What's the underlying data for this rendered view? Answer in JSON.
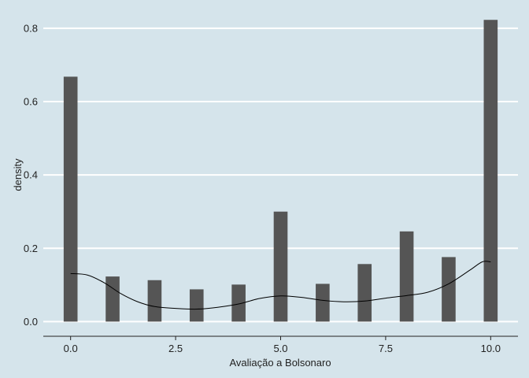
{
  "chart_data": {
    "type": "bar",
    "title": "",
    "xlabel": "Avaliação a Bolsonaro",
    "ylabel": "density",
    "xlim": [
      -0.65,
      10.65
    ],
    "ylim": [
      -0.04,
      0.86
    ],
    "x_ticks": [
      0.0,
      2.5,
      5.0,
      7.5,
      10.0
    ],
    "x_tick_labels": [
      "0.0",
      "2.5",
      "5.0",
      "7.5",
      "10.0"
    ],
    "y_ticks": [
      0.0,
      0.2,
      0.4,
      0.6,
      0.8
    ],
    "y_tick_labels": [
      "0.0",
      "0.2",
      "0.4",
      "0.6",
      "0.8"
    ],
    "grid": "horizontal",
    "legend": "none",
    "bar_width": 0.33,
    "bars": [
      {
        "x": 0,
        "y": 0.668
      },
      {
        "x": 1,
        "y": 0.123
      },
      {
        "x": 2,
        "y": 0.113
      },
      {
        "x": 3,
        "y": 0.088
      },
      {
        "x": 4,
        "y": 0.101
      },
      {
        "x": 5,
        "y": 0.3
      },
      {
        "x": 6,
        "y": 0.103
      },
      {
        "x": 7,
        "y": 0.157
      },
      {
        "x": 8,
        "y": 0.246
      },
      {
        "x": 9,
        "y": 0.176
      },
      {
        "x": 10,
        "y": 0.823
      }
    ],
    "density_curve": [
      [
        0.0,
        0.131
      ],
      [
        0.4,
        0.127
      ],
      [
        0.8,
        0.106
      ],
      [
        1.2,
        0.076
      ],
      [
        1.6,
        0.054
      ],
      [
        2.0,
        0.041
      ],
      [
        2.5,
        0.036
      ],
      [
        3.0,
        0.034
      ],
      [
        3.5,
        0.039
      ],
      [
        4.0,
        0.048
      ],
      [
        4.5,
        0.063
      ],
      [
        5.0,
        0.07
      ],
      [
        5.5,
        0.066
      ],
      [
        6.0,
        0.058
      ],
      [
        6.5,
        0.054
      ],
      [
        7.0,
        0.056
      ],
      [
        7.5,
        0.064
      ],
      [
        8.0,
        0.071
      ],
      [
        8.5,
        0.08
      ],
      [
        9.0,
        0.103
      ],
      [
        9.5,
        0.14
      ],
      [
        9.8,
        0.163
      ],
      [
        10.0,
        0.163
      ]
    ],
    "colors": {
      "background": "#d5e4eb",
      "bar": "#555555",
      "grid": "#ffffff",
      "curve": "#000000",
      "axis": "#222222"
    }
  }
}
